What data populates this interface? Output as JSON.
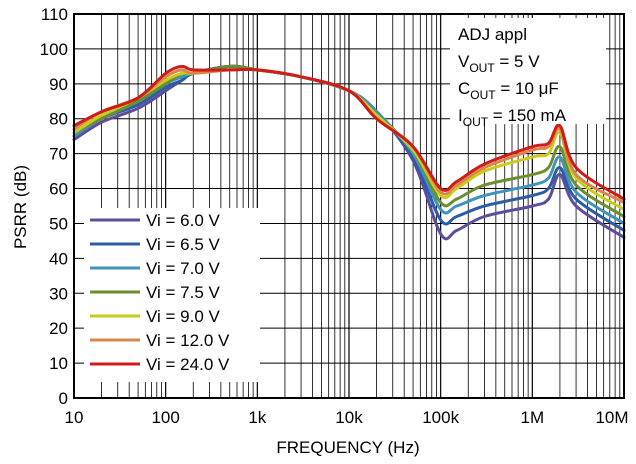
{
  "chart_data": {
    "type": "line",
    "xlabel": "FREQUENCY (Hz)",
    "ylabel": "PSRR (dB)",
    "xscale": "log",
    "xlim": [
      10,
      10000000
    ],
    "ylim": [
      0,
      110
    ],
    "grid": true,
    "x_tick_values": [
      10,
      100,
      1000,
      10000,
      100000,
      1000000,
      10000000
    ],
    "x_tick_labels": [
      "10",
      "100",
      "1k",
      "10k",
      "100k",
      "1M",
      "10M"
    ],
    "y_ticks": [
      0,
      10,
      20,
      30,
      40,
      50,
      60,
      70,
      80,
      90,
      100,
      110
    ],
    "legend_position": "bottom-left",
    "annotation": {
      "line1": "ADJ appl",
      "vout_main": "V",
      "vout_sub": "OUT",
      "vout_rest": " = 5 V",
      "cout_main": "C",
      "cout_sub": "OUT",
      "cout_rest": " = 10 μF",
      "iout_main": "I",
      "iout_sub": "OUT",
      "iout_rest": " = 150 mA"
    },
    "x": [
      10,
      20,
      50,
      100,
      150,
      200,
      500,
      1000,
      3000,
      10000,
      20000,
      50000,
      100000,
      150000,
      300000,
      1000000,
      1500000,
      2000000,
      3000000,
      10000000
    ],
    "series": [
      {
        "name": "Vi = 6.0 V",
        "color": "#5e4c9c",
        "values": [
          74,
          79,
          83,
          88,
          91,
          93,
          95,
          94,
          92,
          88,
          82,
          68,
          47,
          48,
          52,
          55,
          57,
          64,
          55,
          46
        ]
      },
      {
        "name": "Vi = 6.5 V",
        "color": "#2a5ca8",
        "values": [
          75,
          80,
          84,
          89,
          91,
          93,
          95,
          94,
          92,
          88,
          82,
          69,
          51,
          52,
          55,
          58,
          60,
          66,
          57,
          48
        ]
      },
      {
        "name": "Vi = 7.0 V",
        "color": "#3f93bd",
        "values": [
          75,
          80,
          85,
          90,
          92,
          93,
          95,
          94,
          92,
          88,
          82,
          70,
          54,
          55,
          58,
          61,
          63,
          69,
          59,
          50
        ]
      },
      {
        "name": "Vi = 7.5 V",
        "color": "#6b8e2e",
        "values": [
          76,
          80,
          85,
          90,
          93,
          93,
          95,
          94,
          92,
          88,
          81,
          71,
          56,
          57,
          61,
          64,
          66,
          72,
          61,
          52
        ]
      },
      {
        "name": "Vi = 9.0 V",
        "color": "#c9cc1a",
        "values": [
          76,
          81,
          86,
          91,
          93,
          93,
          94,
          94,
          92,
          88,
          81,
          71,
          58,
          60,
          65,
          69,
          70,
          76,
          63,
          54
        ]
      },
      {
        "name": "Vi = 12.0 V",
        "color": "#d9874a",
        "values": [
          77,
          82,
          86,
          92,
          94,
          93,
          94,
          94,
          92,
          88,
          80,
          72,
          59,
          61,
          66,
          71,
          72,
          77,
          64,
          56
        ]
      },
      {
        "name": "Vi = 24.0 V",
        "color": "#d11a1a",
        "values": [
          78,
          82,
          86,
          93,
          95,
          94,
          94,
          94,
          92,
          88,
          80,
          72,
          60,
          62,
          67,
          72,
          73,
          78,
          66,
          57
        ]
      }
    ]
  }
}
